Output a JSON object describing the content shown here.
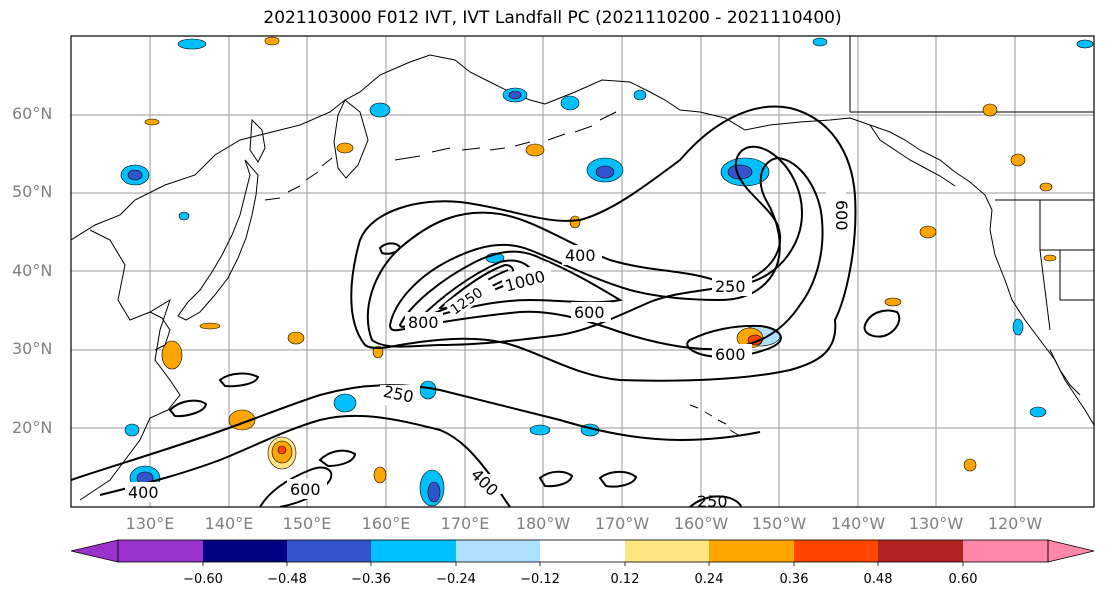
{
  "title": "2021103000 F012 IVT, IVT Landfall PC (2021110200 - 2021110400)",
  "latitude_labels": [
    "60°N",
    "50°N",
    "40°N",
    "30°N",
    "20°N"
  ],
  "longitude_labels": [
    "130°E",
    "140°E",
    "150°E",
    "160°E",
    "170°E",
    "180°W",
    "170°W",
    "160°W",
    "150°W",
    "140°W",
    "130°W",
    "120°W"
  ],
  "contour_labels": {
    "c400_north": "400",
    "c1000": "1000",
    "c1250": "1250",
    "c800": "800",
    "c600_center": "600",
    "c250_east": "250",
    "c600_east": "600",
    "c600_gulf": "600",
    "c250_south": "250",
    "c600_south": "600",
    "c400_south": "400",
    "c400_sw": "400",
    "c250_bottom": "250"
  },
  "colorbar": {
    "ticks": [
      "−0.60",
      "−0.48",
      "−0.36",
      "−0.24",
      "−0.12",
      "0.12",
      "0.24",
      "0.36",
      "0.48",
      "0.60"
    ],
    "colors": [
      "#9933cc",
      "#000080",
      "#3355cc",
      "#00bfff",
      "#b0e0ff",
      "#ffffff",
      "#ffe680",
      "#ffa500",
      "#ff4500",
      "#b22222",
      "#ff88aa"
    ]
  }
}
